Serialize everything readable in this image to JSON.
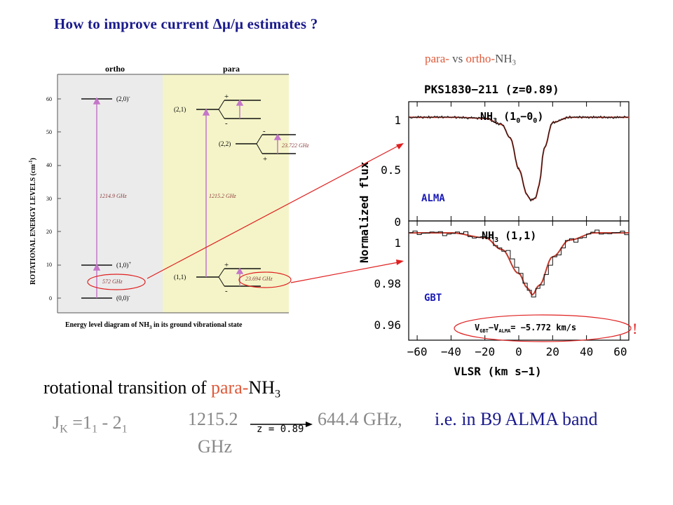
{
  "header": {
    "title": "How to improve current Δμ/μ  estimates ?",
    "subtitle_para": "para-",
    "subtitle_vs": " vs ",
    "subtitle_ortho": "ortho-",
    "subtitle_species": "NH",
    "subtitle_sub": "3"
  },
  "level_diagram": {
    "col_ortho": "ortho",
    "col_para": "para",
    "ylabel": "ROTATIONAL ENERGY LEVELS (cm",
    "ylabel_sup": "-1",
    "ylabel_end": ")",
    "yticks": [
      "0",
      "10",
      "20",
      "30",
      "40",
      "50",
      "60"
    ],
    "caption": "Energy level diagram of NH",
    "caption_sub": "3",
    "caption_end": " in its ground vibrational state",
    "levels": {
      "ortho_20": "(2,0)",
      "ortho_10": "(1,0)",
      "ortho_00": "(0,0)",
      "para_21": "(2,1)",
      "para_22": "(2,2)",
      "para_11": "(1,1)",
      "sign_plus": "+",
      "sign_minus": "-"
    },
    "transitions": {
      "ortho_big": "1214.9 GHz",
      "ortho_small": "572 GHz",
      "para_big": "1215.2 GHz",
      "para_22": "23.722 GHz",
      "para_11": "23.694 GHz"
    }
  },
  "spectra": {
    "title": "PKS1830−211 (z=0.89)",
    "ylabel": "Normalized flux",
    "xlabel": "VLSR (km s−1)",
    "top_label": "NH",
    "top_label_sub": "3",
    "top_label_rest": " (1",
    "top_label_sub2": "0",
    "top_label_dash": "−0",
    "top_label_sub3": "0",
    "top_label_end": ")",
    "top_instrument": "ALMA",
    "bottom_label": "NH",
    "bottom_label_sub": "3",
    "bottom_label_rest": " (1,1)",
    "bottom_instrument": "GBT",
    "velocity_label": "V",
    "velocity_sub1": "GBT",
    "velocity_mid": "−V",
    "velocity_sub2": "ALMA",
    "velocity_value": "= −5.772 km/s",
    "exclaim": "!",
    "top_yticks": [
      "0",
      "0.5",
      "1"
    ],
    "bottom_yticks": [
      "0.96",
      "0.98",
      "1"
    ],
    "xticks": [
      "−60",
      "−40",
      "−20",
      "0",
      "20",
      "40",
      "60"
    ]
  },
  "bottom": {
    "line1_a": "rotational  transition of ",
    "line1_para": "para-",
    "line1_b": "NH",
    "line1_sub": "3",
    "jk": "J",
    "jk_sub": "K",
    "jk_eq": " =1",
    "jk_sub1": "1",
    "jk_dash": " - 2",
    "jk_sub2": "1",
    "freq_rest_a": "1215.2",
    "freq_rest_b": "GHz",
    "redshift": "z = 0.89",
    "freq_obs": "644.4 GHz,",
    "band": "i.e. in B9 ALMA band"
  },
  "chart_data": [
    {
      "type": "line",
      "title": "PKS1830−211 (z=0.89)",
      "xlabel": "VLSR (km s−1)",
      "ylabel": "Normalized flux",
      "xlim": [
        -65,
        65
      ],
      "ylim": [
        0,
        1.15
      ],
      "series": [
        {
          "name": "ALMA",
          "x": [
            -65,
            -40,
            -20,
            -10,
            -5,
            0,
            5,
            7,
            10,
            12,
            15,
            20,
            30,
            65
          ],
          "values": [
            1.0,
            1.0,
            0.99,
            0.93,
            0.8,
            0.5,
            0.25,
            0.2,
            0.22,
            0.35,
            0.7,
            0.95,
            1.0,
            1.0
          ]
        }
      ],
      "color": "#c0392b"
    },
    {
      "type": "line",
      "xlabel": "VLSR (km s−1)",
      "ylabel": "Normalized flux",
      "xlim": [
        -65,
        65
      ],
      "ylim": [
        0.955,
        1.005
      ],
      "series": [
        {
          "name": "GBT",
          "x": [
            -65,
            -40,
            -20,
            -10,
            0,
            5,
            8,
            12,
            20,
            30,
            45,
            65
          ],
          "values": [
            1.0,
            1.0,
            0.998,
            0.993,
            0.983,
            0.977,
            0.974,
            0.978,
            0.99,
            0.997,
            1.0,
            1.0
          ]
        }
      ],
      "color": "#c0392b"
    }
  ]
}
